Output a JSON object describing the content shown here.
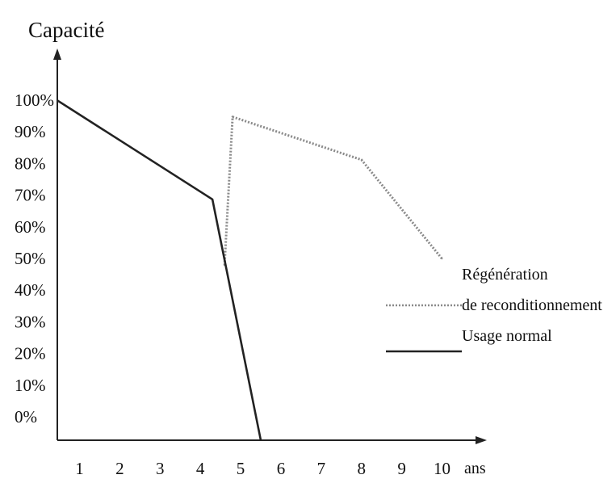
{
  "chart_data": {
    "type": "line",
    "ylabel": "Capacité",
    "xlabel": "ans",
    "x_ticks": [
      "1",
      "2",
      "3",
      "4",
      "5",
      "6",
      "7",
      "8",
      "9",
      "10"
    ],
    "y_ticks": [
      "100%",
      "90%",
      "80%",
      "70%",
      "60%",
      "50%",
      "40%",
      "30%",
      "20%",
      "10%",
      "0%"
    ],
    "xlim": [
      0.45,
      10.45
    ],
    "ylim": [
      -6,
      100
    ],
    "grid": false,
    "legend_position": "right",
    "legend": [
      {
        "series_index": 0,
        "lines": [
          "Régénération",
          "de reconditionnement"
        ]
      },
      {
        "series_index": 1,
        "lines": [
          "Usage normal"
        ]
      }
    ],
    "series": [
      {
        "name": "Régénération de reconditionnement",
        "style": "dotted",
        "color": "#8a8a8a",
        "points": [
          [
            4.6,
            47
          ],
          [
            4.8,
            92
          ],
          [
            8.0,
            79
          ],
          [
            10.0,
            49
          ]
        ]
      },
      {
        "name": "Usage normal",
        "style": "solid",
        "color": "#222222",
        "points": [
          [
            0.45,
            97
          ],
          [
            4.3,
            67
          ],
          [
            5.5,
            -6
          ]
        ]
      }
    ]
  }
}
